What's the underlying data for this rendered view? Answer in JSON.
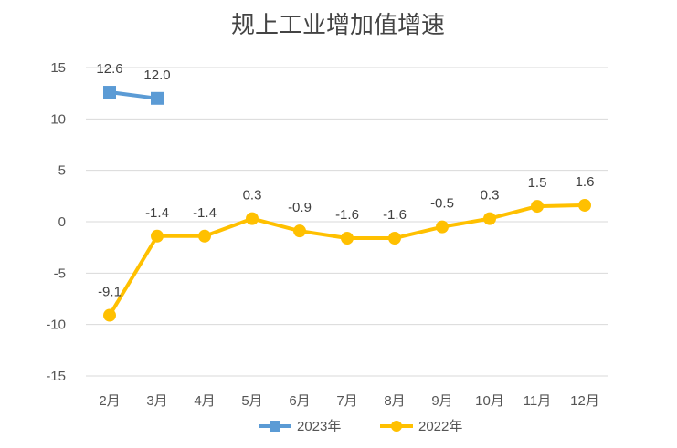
{
  "chart_data": {
    "type": "line",
    "title": "规上工业增加值增速",
    "categories": [
      "2月",
      "3月",
      "4月",
      "5月",
      "6月",
      "7月",
      "8月",
      "9月",
      "10月",
      "11月",
      "12月"
    ],
    "ylim": [
      -15,
      15
    ],
    "yticks": [
      15,
      10,
      5,
      0,
      -5,
      -10,
      -15
    ],
    "grid": true,
    "legend_position": "bottom",
    "series": [
      {
        "name": "2023年",
        "color": "#5b9bd5",
        "marker": "square",
        "values": [
          12.6,
          12.0,
          null,
          null,
          null,
          null,
          null,
          null,
          null,
          null,
          null
        ],
        "labels": [
          "12.6",
          "12.0",
          null,
          null,
          null,
          null,
          null,
          null,
          null,
          null,
          null
        ]
      },
      {
        "name": "2022年",
        "color": "#ffc000",
        "marker": "circle",
        "values": [
          -9.1,
          -1.4,
          -1.4,
          0.3,
          -0.9,
          -1.6,
          -1.6,
          -0.5,
          0.3,
          1.5,
          1.6
        ],
        "labels": [
          "-9.1",
          "-1.4",
          "-1.4",
          "0.3",
          "-0.9",
          "-1.6",
          "-1.6",
          "-0.5",
          "0.3",
          "1.5",
          "1.6"
        ]
      }
    ]
  }
}
